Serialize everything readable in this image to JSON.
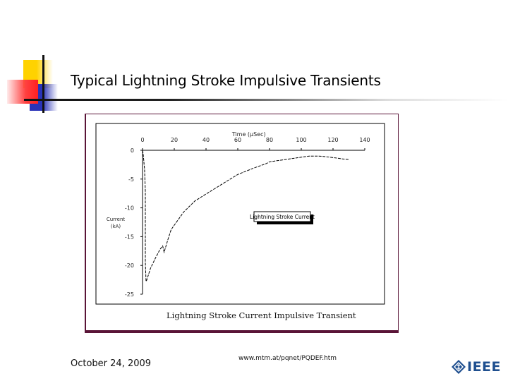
{
  "slide": {
    "title": "Typical Lightning Stroke Impulsive Transients",
    "footer_date": "October 24, 2009",
    "footer_url": "www.mtm.at/pqnet/PQDEF.htm",
    "logo_text": "IEEE",
    "colors": {
      "frame": "#5a1437",
      "deco_yellow": "#ffd200",
      "deco_blue": "#2a33b8",
      "deco_red": "#ff3030",
      "logo_blue": "#1f4f8f"
    }
  },
  "chart_data": {
    "type": "line",
    "title": "Lightning Stroke Current Impulsive Transient",
    "xlabel": "Time (μSec)",
    "ylabel": "Current (kA)",
    "x_axis_position": "top",
    "xlim": [
      0,
      140
    ],
    "ylim": [
      -25,
      0
    ],
    "x_ticks": [
      0,
      20,
      40,
      60,
      80,
      100,
      120,
      140
    ],
    "x_tick_labels": [
      "0",
      "20",
      "40",
      "60",
      "80",
      "100",
      "120",
      "140"
    ],
    "y_ticks": [
      0,
      -5,
      -10,
      -15,
      -20,
      -25
    ],
    "y_tick_labels": [
      "0",
      "-5",
      "-10",
      "-15",
      "-20",
      "-25"
    ],
    "grid": false,
    "legend": {
      "entries": [
        "Lightning Stroke Current"
      ],
      "position": "center-right"
    },
    "series": [
      {
        "name": "Lightning Stroke Current",
        "x": [
          0,
          0.4,
          1.3,
          1.8,
          1.8,
          2.2,
          2.7,
          5,
          8,
          11,
          12.7,
          13.6,
          16,
          18,
          20,
          26,
          33,
          40,
          50,
          60,
          70,
          78,
          80,
          90,
          100,
          105,
          111,
          115,
          121,
          126,
          130
        ],
        "y": [
          0,
          -0.6,
          -3.3,
          -7.2,
          -19.5,
          -22.8,
          -22.5,
          -20.5,
          -18.8,
          -17.2,
          -16.6,
          -17.7,
          -15.5,
          -13.8,
          -13.0,
          -10.7,
          -8.8,
          -7.6,
          -5.9,
          -4.2,
          -3.1,
          -2.3,
          -2.0,
          -1.6,
          -1.2,
          -1.0,
          -1.0,
          -1.1,
          -1.3,
          -1.5,
          -1.6
        ]
      }
    ]
  }
}
